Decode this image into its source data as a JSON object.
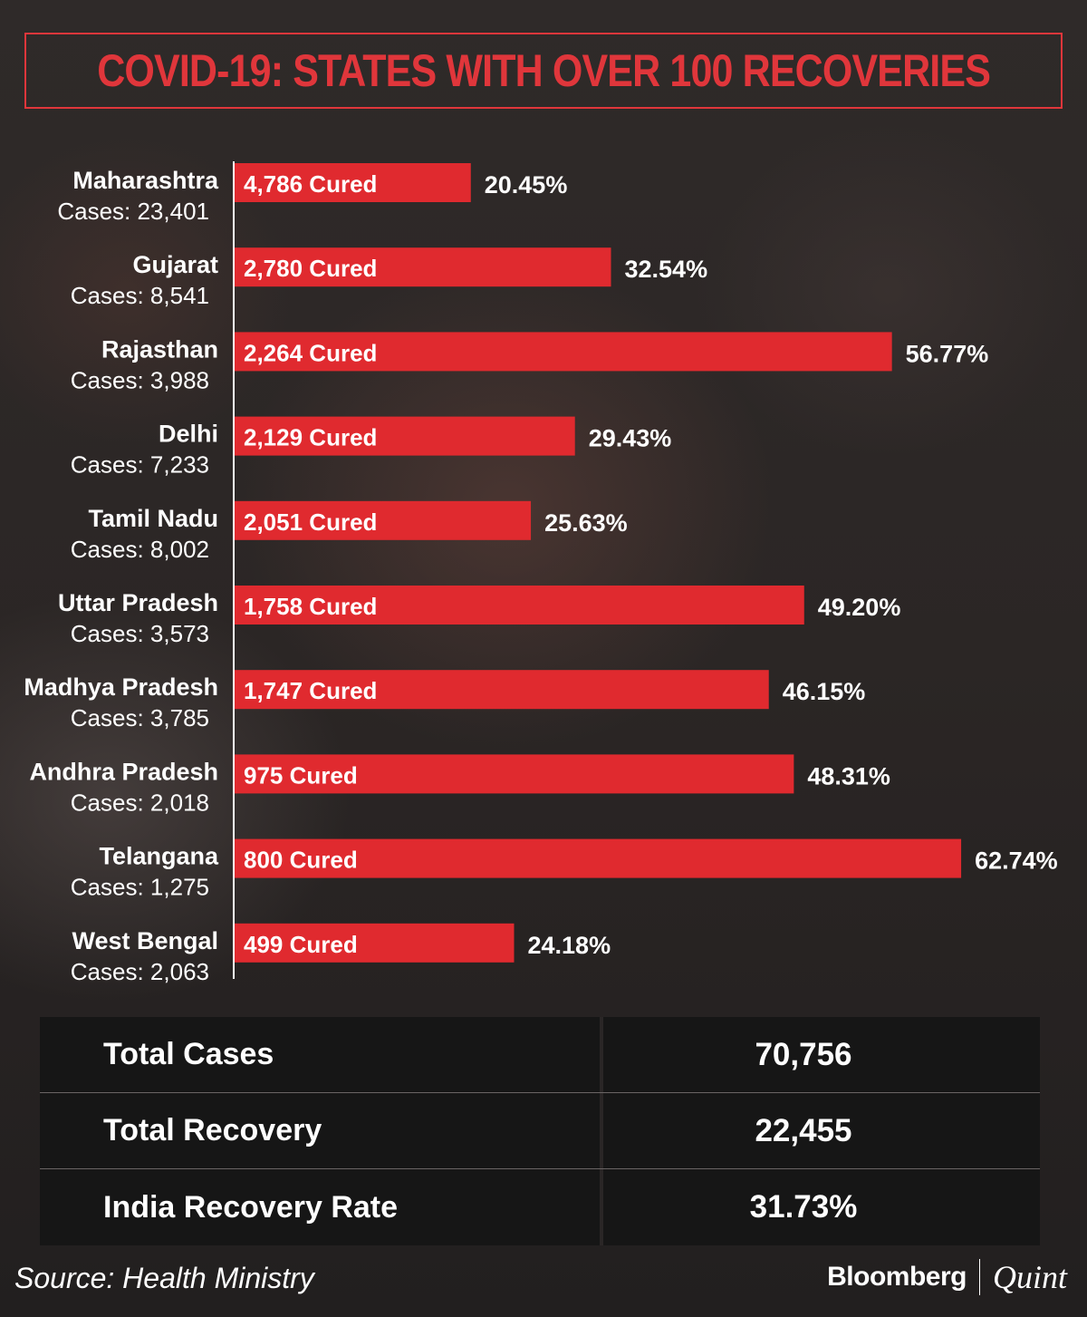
{
  "title": "COVID-19: STATES WITH OVER 100 RECOVERIES",
  "chart_data": {
    "type": "bar",
    "orientation": "horizontal",
    "title": "COVID-19: STATES WITH OVER 100 RECOVERIES",
    "bar_value_key": "recovery_rate_pct",
    "bar_color": "#e02a2f",
    "items": [
      {
        "state": "Maharashtra",
        "cases_label": "Cases: 23,401",
        "cured_label": "4,786 Cured",
        "recovery_rate_pct": 20.45,
        "pct_label": "20.45%"
      },
      {
        "state": "Gujarat",
        "cases_label": "Cases: 8,541",
        "cured_label": "2,780 Cured",
        "recovery_rate_pct": 32.54,
        "pct_label": "32.54%"
      },
      {
        "state": "Rajasthan",
        "cases_label": "Cases: 3,988",
        "cured_label": "2,264 Cured",
        "recovery_rate_pct": 56.77,
        "pct_label": "56.77%"
      },
      {
        "state": "Delhi",
        "cases_label": "Cases: 7,233",
        "cured_label": "2,129 Cured",
        "recovery_rate_pct": 29.43,
        "pct_label": "29.43%"
      },
      {
        "state": "Tamil Nadu",
        "cases_label": "Cases: 8,002",
        "cured_label": "2,051 Cured",
        "recovery_rate_pct": 25.63,
        "pct_label": "25.63%"
      },
      {
        "state": "Uttar Pradesh",
        "cases_label": "Cases: 3,573",
        "cured_label": "1,758 Cured",
        "recovery_rate_pct": 49.2,
        "pct_label": "49.20%"
      },
      {
        "state": "Madhya Pradesh",
        "cases_label": "Cases: 3,785",
        "cured_label": "1,747 Cured",
        "recovery_rate_pct": 46.15,
        "pct_label": "46.15%"
      },
      {
        "state": "Andhra Pradesh",
        "cases_label": "Cases: 2,018",
        "cured_label": "975 Cured",
        "recovery_rate_pct": 48.31,
        "pct_label": "48.31%"
      },
      {
        "state": "Telangana",
        "cases_label": "Cases: 1,275",
        "cured_label": "800 Cured",
        "recovery_rate_pct": 62.74,
        "pct_label": "62.74%"
      },
      {
        "state": "West Bengal",
        "cases_label": "Cases: 2,063",
        "cured_label": "499 Cured",
        "recovery_rate_pct": 24.18,
        "pct_label": "24.18%"
      }
    ]
  },
  "summary": [
    {
      "label": "Total Cases",
      "value": "70,756"
    },
    {
      "label": "Total Recovery",
      "value": "22,455"
    },
    {
      "label": "India Recovery Rate",
      "value": "31.73%"
    }
  ],
  "footer": {
    "source": "Source: Health Ministry",
    "brand_left": "Bloomberg",
    "brand_right": "Quint"
  },
  "colors": {
    "accent": "#e0363b",
    "bar": "#e02a2f",
    "table_bg": "#161616"
  }
}
